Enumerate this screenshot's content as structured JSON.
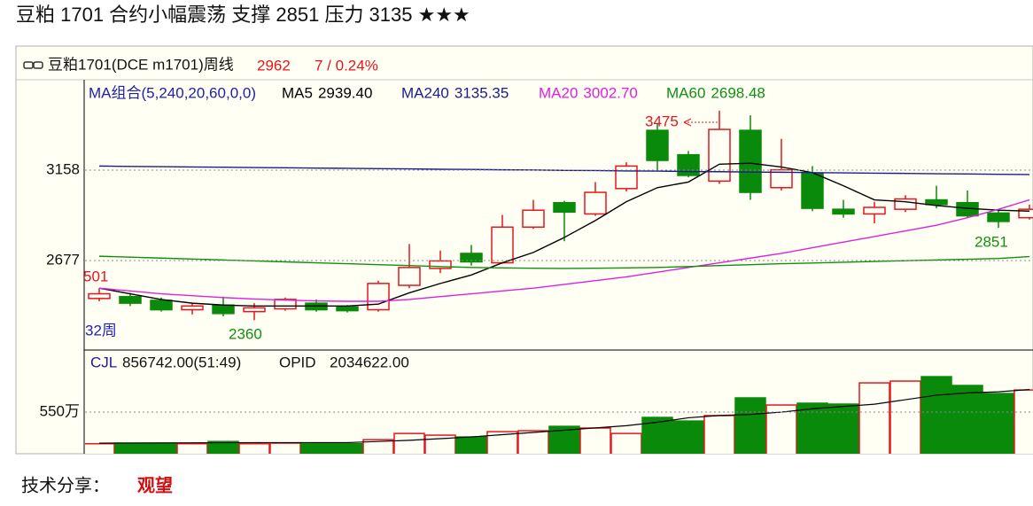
{
  "header": {
    "title": "豆粕 1701 合约小幅震荡  支撑 2851   压力 3135  ★★★"
  },
  "chart_data": {
    "type": "candlestick",
    "title": "豆粕1701(DCE m1701)周线",
    "last_price": "2962",
    "change": "7 / 0.24%",
    "ma_title": "MA组合(5,240,20,60,0,0)",
    "ylim": [
      2210,
      3630
    ],
    "yticks": [
      2677,
      3158
    ],
    "grid": true,
    "up_color": "#e8141e",
    "down_color": "#0a8a0a",
    "open": [
      2475,
      2485,
      2465,
      2415,
      2440,
      2405,
      2420,
      2450,
      2430,
      2415,
      2545,
      2635,
      2715,
      2665,
      2855,
      2985,
      2925,
      3060,
      3370,
      3240,
      3100,
      3370,
      3065,
      3140,
      2950,
      2925,
      2950,
      3000,
      2985,
      2930,
      2905
    ],
    "high": [
      2530,
      2505,
      2480,
      2450,
      2485,
      2450,
      2480,
      2470,
      2440,
      2570,
      2765,
      2730,
      2760,
      2920,
      3000,
      2995,
      3095,
      3200,
      3405,
      3260,
      3475,
      3450,
      3325,
      3180,
      3000,
      2990,
      3025,
      3075,
      3050,
      2950,
      2975
    ],
    "low": [
      2460,
      2435,
      2405,
      2390,
      2380,
      2360,
      2410,
      2405,
      2400,
      2405,
      2530,
      2610,
      2650,
      2660,
      2845,
      2780,
      2915,
      3045,
      3160,
      3120,
      3085,
      3000,
      3050,
      2940,
      2905,
      2875,
      2935,
      2955,
      2905,
      2851,
      2895
    ],
    "close": [
      2500,
      2450,
      2415,
      2435,
      2395,
      2425,
      2470,
      2415,
      2410,
      2555,
      2640,
      2675,
      2670,
      2855,
      2945,
      2935,
      3040,
      3180,
      3210,
      3130,
      3375,
      3040,
      3160,
      2955,
      2925,
      2960,
      3005,
      2975,
      2915,
      2885,
      2950
    ],
    "series": [
      {
        "name": "MA5",
        "legend_value": "2939.40",
        "color": "#000000",
        "values": [
          2530,
          2500,
          2470,
          2450,
          2440,
          2435,
          2435,
          2435,
          2435,
          2445,
          2505,
          2555,
          2600,
          2665,
          2720,
          2800,
          2890,
          2990,
          3065,
          3095,
          3190,
          3195,
          3175,
          3145,
          3075,
          3000,
          2990,
          2970,
          2955,
          2945,
          2940
        ]
      },
      {
        "name": "MA240",
        "legend_value": "3135.35",
        "color": "#1c1c8c",
        "values": [
          3180,
          3178,
          3177,
          3175,
          3174,
          3172,
          3171,
          3169,
          3168,
          3166,
          3165,
          3163,
          3162,
          3160,
          3159,
          3157,
          3156,
          3154,
          3153,
          3151,
          3150,
          3148,
          3147,
          3145,
          3144,
          3142,
          3141,
          3139,
          3138,
          3136,
          3135
        ]
      },
      {
        "name": "MA20",
        "legend_value": "3002.70",
        "color": "#e020e0",
        "values": [
          2530,
          2515,
          2500,
          2490,
          2480,
          2472,
          2466,
          2462,
          2460,
          2460,
          2470,
          2485,
          2500,
          2515,
          2530,
          2550,
          2570,
          2590,
          2615,
          2640,
          2665,
          2690,
          2715,
          2745,
          2775,
          2805,
          2835,
          2865,
          2905,
          2950,
          3000
        ]
      },
      {
        "name": "MA60",
        "legend_value": "2698.48",
        "color": "#109010",
        "values": [
          2700,
          2695,
          2690,
          2685,
          2680,
          2675,
          2670,
          2665,
          2660,
          2655,
          2650,
          2645,
          2640,
          2638,
          2636,
          2635,
          2636,
          2638,
          2640,
          2645,
          2650,
          2655,
          2660,
          2664,
          2668,
          2672,
          2676,
          2680,
          2684,
          2688,
          2698
        ]
      }
    ],
    "annotations": [
      {
        "text": "3475",
        "color": "#e8141e"
      },
      {
        "text": "2851",
        "color": "#109010"
      },
      {
        "text": "2360",
        "color": "#109010"
      },
      {
        "text": "501",
        "color": "#e8141e"
      },
      {
        "text": "32周",
        "color": "#2020c0"
      }
    ],
    "volume": {
      "name": "CJL",
      "legend_value": "856742.00(51:49)",
      "extra_name": "OPID",
      "extra_value": "2034622.00",
      "ylim": [
        2600000,
        11000000
      ],
      "yticks": [
        {
          "value": 5500000,
          "label": "550万"
        }
      ],
      "values": [
        2700000,
        2750000,
        2750000,
        2700000,
        2900000,
        2700000,
        2750000,
        2700000,
        2700000,
        3060000,
        3610000,
        3460000,
        3300000,
        3770000,
        3850000,
        4240000,
        4090000,
        3610000,
        5030000,
        4710000,
        5190000,
        6760000,
        6130000,
        6290000,
        6210000,
        8090000,
        8250000,
        8640000,
        7860000,
        7150000,
        7460000
      ],
      "ma_color": "#000000",
      "ma_values": [
        2750000,
        2760000,
        2770000,
        2780000,
        2790000,
        2800000,
        2800000,
        2800000,
        2800000,
        2900000,
        3000000,
        3150000,
        3300000,
        3500000,
        3700000,
        3900000,
        4100000,
        4300000,
        4600000,
        5000000,
        5200000,
        5300000,
        5500000,
        5800000,
        6000000,
        6200000,
        6600000,
        7000000,
        7200000,
        7300000,
        7500000
      ]
    }
  },
  "footer": {
    "label": "技术分享：",
    "verdict": "观望"
  }
}
